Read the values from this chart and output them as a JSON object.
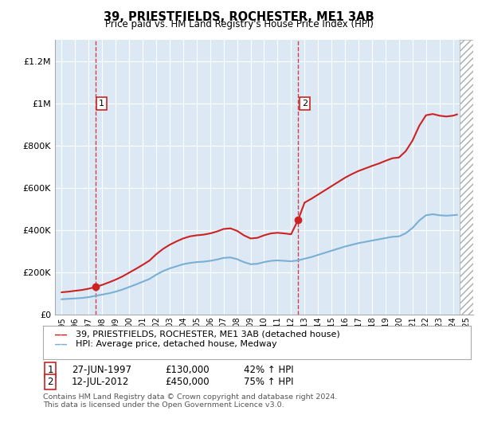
{
  "title": "39, PRIESTFIELDS, ROCHESTER, ME1 3AB",
  "subtitle": "Price paid vs. HM Land Registry's House Price Index (HPI)",
  "ylim": [
    0,
    1300000
  ],
  "xlim_start": 1994.5,
  "xlim_end": 2025.5,
  "sale1_year": 1997.487,
  "sale1_price": 130000,
  "sale1_label": "1",
  "sale2_year": 2012.534,
  "sale2_price": 450000,
  "sale2_label": "2",
  "legend_line1": "39, PRIESTFIELDS, ROCHESTER, ME1 3AB (detached house)",
  "legend_line2": "HPI: Average price, detached house, Medway",
  "table_row1": [
    "1",
    "27-JUN-1997",
    "£130,000",
    "42% ↑ HPI"
  ],
  "table_row2": [
    "2",
    "12-JUL-2012",
    "£450,000",
    "75% ↑ HPI"
  ],
  "footer": "Contains HM Land Registry data © Crown copyright and database right 2024.\nThis data is licensed under the Open Government Licence v3.0.",
  "hpi_color": "#7aafd4",
  "price_color": "#cc2222",
  "bg_color": "#dce9f5",
  "grid_color": "#ffffff",
  "yticks": [
    0,
    200000,
    400000,
    600000,
    800000,
    1000000,
    1200000
  ],
  "ytick_labels": [
    "£0",
    "£200K",
    "£400K",
    "£600K",
    "£800K",
    "£1M",
    "£1.2M"
  ],
  "hpi_data_x": [
    1995,
    1995.5,
    1996,
    1996.5,
    1997,
    1997.5,
    1998,
    1998.5,
    1999,
    1999.5,
    2000,
    2000.5,
    2001,
    2001.5,
    2002,
    2002.5,
    2003,
    2003.5,
    2004,
    2004.5,
    2005,
    2005.5,
    2006,
    2006.5,
    2007,
    2007.5,
    2008,
    2008.5,
    2009,
    2009.5,
    2010,
    2010.5,
    2011,
    2011.5,
    2012,
    2012.5,
    2013,
    2013.5,
    2014,
    2014.5,
    2015,
    2015.5,
    2016,
    2016.5,
    2017,
    2017.5,
    2018,
    2018.5,
    2019,
    2019.5,
    2020,
    2020.5,
    2021,
    2021.5,
    2022,
    2022.5,
    2023,
    2023.5,
    2024,
    2024.3
  ],
  "hpi_data_y": [
    72000,
    74000,
    76000,
    78000,
    82000,
    88000,
    94000,
    100000,
    108000,
    118000,
    130000,
    142000,
    155000,
    168000,
    188000,
    205000,
    218000,
    228000,
    238000,
    244000,
    248000,
    250000,
    254000,
    260000,
    268000,
    270000,
    262000,
    248000,
    238000,
    240000,
    248000,
    254000,
    256000,
    254000,
    252000,
    256000,
    264000,
    272000,
    282000,
    292000,
    302000,
    312000,
    322000,
    330000,
    338000,
    344000,
    350000,
    356000,
    362000,
    368000,
    370000,
    385000,
    410000,
    445000,
    470000,
    475000,
    470000,
    468000,
    470000,
    472000
  ],
  "price_data_x": [
    1995,
    1995.5,
    1996,
    1996.5,
    1997,
    1997.487,
    1998,
    1998.5,
    1999,
    1999.5,
    2000,
    2000.5,
    2001,
    2001.5,
    2002,
    2002.5,
    2003,
    2003.5,
    2004,
    2004.5,
    2005,
    2005.5,
    2006,
    2006.5,
    2007,
    2007.5,
    2008,
    2008.5,
    2009,
    2009.5,
    2010,
    2010.5,
    2011,
    2011.5,
    2012,
    2012.534,
    2013,
    2013.5,
    2014,
    2014.5,
    2015,
    2015.5,
    2016,
    2016.5,
    2017,
    2017.5,
    2018,
    2018.5,
    2019,
    2019.5,
    2020,
    2020.5,
    2021,
    2021.5,
    2022,
    2022.5,
    2023,
    2023.5,
    2024,
    2024.3
  ],
  "price_data_y": [
    105000,
    108000,
    112000,
    116000,
    122000,
    130000,
    140000,
    152000,
    165000,
    180000,
    198000,
    216000,
    235000,
    255000,
    285000,
    310000,
    330000,
    346000,
    360000,
    370000,
    375000,
    378000,
    384000,
    393000,
    405000,
    408000,
    396000,
    375000,
    360000,
    363000,
    375000,
    384000,
    387000,
    384000,
    380000,
    450000,
    530000,
    548000,
    568000,
    588000,
    608000,
    628000,
    648000,
    665000,
    680000,
    692000,
    704000,
    715000,
    728000,
    740000,
    744000,
    774000,
    824000,
    894000,
    944000,
    950000,
    942000,
    938000,
    942000,
    948000
  ]
}
